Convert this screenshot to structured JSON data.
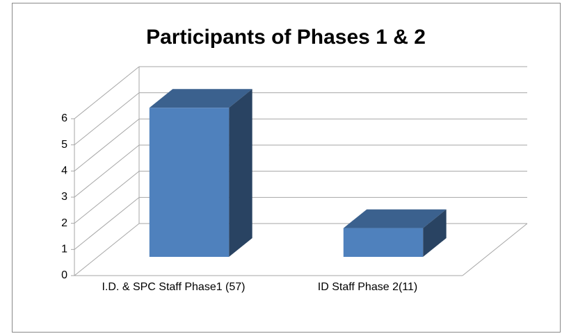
{
  "chart_data": {
    "type": "bar3d",
    "title": "Participants of Phases 1 & 2",
    "categories": [
      "I.D. & SPC Staff Phase1 (57)",
      "ID Staff  Phase 2(11)"
    ],
    "values": [
      5.7,
      1.1
    ],
    "color": "#4f81bd",
    "ylim": [
      0,
      6
    ],
    "yticks": [
      0,
      1,
      2,
      3,
      4,
      5,
      6
    ],
    "grid": true
  }
}
